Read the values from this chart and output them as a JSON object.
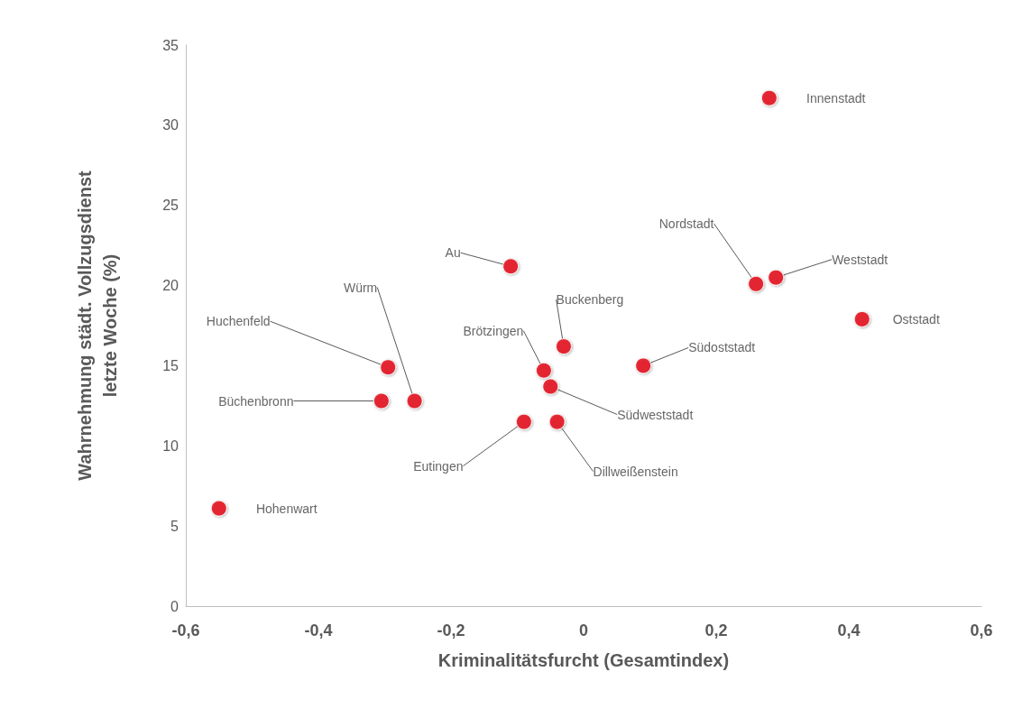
{
  "chart_data": {
    "type": "scatter",
    "xlabel": "Kriminalitätsfurcht (Gesamtindex)",
    "ylabel": "Wahrnehmung städt. Vollzugsdienst\nletzte Woche (%)",
    "x": [
      0.28,
      0.26,
      0.29,
      0.42,
      0.09,
      -0.11,
      -0.03,
      -0.06,
      -0.05,
      -0.09,
      -0.04,
      -0.295,
      -0.255,
      -0.305,
      -0.55
    ],
    "values": [
      31.7,
      20.1,
      20.5,
      17.9,
      15.0,
      21.2,
      16.2,
      14.7,
      13.7,
      11.5,
      11.5,
      14.9,
      12.8,
      12.8,
      6.1
    ],
    "color": "#e30613",
    "marker": "circle",
    "grid": false,
    "xlim": [
      -0.6,
      0.6
    ],
    "xticks": [
      {
        "value": -0.6,
        "label": "-0,6"
      },
      {
        "value": -0.4,
        "label": "-0,4"
      },
      {
        "value": -0.2,
        "label": "-0,2"
      },
      0,
      {
        "value": 0.2,
        "label": "0,2"
      },
      {
        "value": 0.4,
        "label": "0,4"
      },
      {
        "value": 0.6,
        "label": "0,6"
      }
    ],
    "ylim": [
      0,
      35
    ],
    "yticks": [
      0,
      5,
      10,
      15,
      20,
      25,
      30,
      35
    ],
    "annotations": [
      {
        "text": "Innenstadt",
        "x": 0.28,
        "y": 31.7
      },
      {
        "text": "Nordstadt",
        "x": 0.26,
        "y": 20.1
      },
      {
        "text": "Weststadt",
        "x": 0.29,
        "y": 20.5
      },
      {
        "text": "Oststadt",
        "x": 0.42,
        "y": 17.9
      },
      {
        "text": "Südoststadt",
        "x": 0.09,
        "y": 15.0
      },
      {
        "text": "Au",
        "x": -0.11,
        "y": 21.2
      },
      {
        "text": "Buckenberg",
        "x": -0.03,
        "y": 16.2
      },
      {
        "text": "Brötzingen",
        "x": -0.06,
        "y": 14.7
      },
      {
        "text": "Südweststadt",
        "x": -0.05,
        "y": 13.7
      },
      {
        "text": "Eutingen",
        "x": -0.09,
        "y": 11.5
      },
      {
        "text": "Dillweißenstein",
        "x": -0.04,
        "y": 11.5
      },
      {
        "text": "Huchenfeld",
        "x": -0.295,
        "y": 14.9
      },
      {
        "text": "Würm",
        "x": -0.255,
        "y": 12.8
      },
      {
        "text": "Büchenbronn",
        "x": -0.305,
        "y": 12.8
      },
      {
        "text": "Hohenwart",
        "x": -0.55,
        "y": 6.1
      }
    ]
  }
}
